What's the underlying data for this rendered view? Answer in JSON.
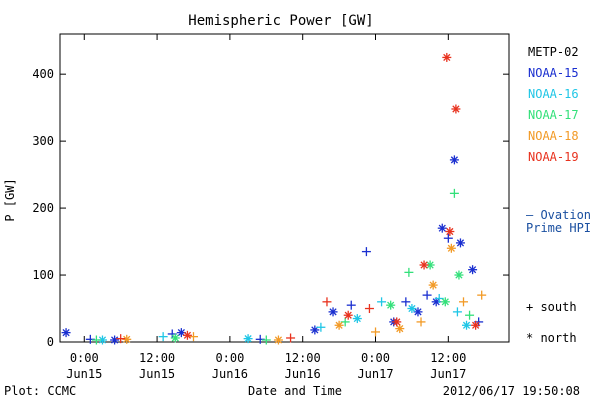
{
  "chart_data": {
    "type": "scatter",
    "title": "Hemispheric Power [GW]",
    "ylabel": "P [GW]",
    "xlabel": "Date and Time",
    "xlim": [
      "2012-06-14 20:00",
      "2012-06-17 22:00"
    ],
    "ylim": [
      0,
      460
    ],
    "yticks": [
      0,
      100,
      200,
      300,
      400
    ],
    "xticks": [
      {
        "t": "2012-06-15 00:00",
        "label1": "0:00",
        "label2": "Jun15"
      },
      {
        "t": "2012-06-15 12:00",
        "label1": "12:00",
        "label2": "Jun15"
      },
      {
        "t": "2012-06-16 00:00",
        "label1": "0:00",
        "label2": "Jun16"
      },
      {
        "t": "2012-06-16 12:00",
        "label1": "12:00",
        "label2": "Jun16"
      },
      {
        "t": "2012-06-17 00:00",
        "label1": "0:00",
        "label2": "Jun17"
      },
      {
        "t": "2012-06-17 12:00",
        "label1": "12:00",
        "label2": "Jun17"
      }
    ],
    "legend": "right",
    "series": [
      {
        "name": "METP-02",
        "color": "#000000",
        "points": []
      },
      {
        "name": "NOAA-15",
        "color": "#1a2fd0",
        "points": [
          {
            "t": "2012-06-14 21:00",
            "v": 14,
            "m": "north"
          },
          {
            "t": "2012-06-15 01:00",
            "v": 4,
            "m": "south"
          },
          {
            "t": "2012-06-15 05:00",
            "v": 3,
            "m": "north"
          },
          {
            "t": "2012-06-15 14:30",
            "v": 12,
            "m": "south"
          },
          {
            "t": "2012-06-15 16:00",
            "v": 14,
            "m": "north"
          },
          {
            "t": "2012-06-16 05:00",
            "v": 4,
            "m": "south"
          },
          {
            "t": "2012-06-16 14:00",
            "v": 18,
            "m": "north"
          },
          {
            "t": "2012-06-16 17:00",
            "v": 45,
            "m": "north"
          },
          {
            "t": "2012-06-16 20:00",
            "v": 55,
            "m": "south"
          },
          {
            "t": "2012-06-16 22:30",
            "v": 135,
            "m": "south"
          },
          {
            "t": "2012-06-17 03:00",
            "v": 30,
            "m": "north"
          },
          {
            "t": "2012-06-17 05:00",
            "v": 60,
            "m": "south"
          },
          {
            "t": "2012-06-17 07:00",
            "v": 45,
            "m": "north"
          },
          {
            "t": "2012-06-17 08:30",
            "v": 70,
            "m": "south"
          },
          {
            "t": "2012-06-17 10:00",
            "v": 60,
            "m": "north"
          },
          {
            "t": "2012-06-17 11:00",
            "v": 170,
            "m": "north"
          },
          {
            "t": "2012-06-17 12:00",
            "v": 155,
            "m": "south"
          },
          {
            "t": "2012-06-17 13:00",
            "v": 272,
            "m": "north"
          },
          {
            "t": "2012-06-17 14:00",
            "v": 148,
            "m": "north"
          },
          {
            "t": "2012-06-17 16:00",
            "v": 108,
            "m": "north"
          },
          {
            "t": "2012-06-17 17:00",
            "v": 30,
            "m": "south"
          }
        ]
      },
      {
        "name": "NOAA-16",
        "color": "#1fc6e6",
        "points": [
          {
            "t": "2012-06-15 03:00",
            "v": 3,
            "m": "north"
          },
          {
            "t": "2012-06-15 13:00",
            "v": 8,
            "m": "south"
          },
          {
            "t": "2012-06-16 03:00",
            "v": 5,
            "m": "north"
          },
          {
            "t": "2012-06-16 15:00",
            "v": 22,
            "m": "south"
          },
          {
            "t": "2012-06-16 21:00",
            "v": 35,
            "m": "north"
          },
          {
            "t": "2012-06-17 01:00",
            "v": 60,
            "m": "south"
          },
          {
            "t": "2012-06-17 06:00",
            "v": 50,
            "m": "north"
          },
          {
            "t": "2012-06-17 10:30",
            "v": 65,
            "m": "south"
          },
          {
            "t": "2012-06-17 13:30",
            "v": 45,
            "m": "south"
          },
          {
            "t": "2012-06-17 15:00",
            "v": 25,
            "m": "north"
          }
        ]
      },
      {
        "name": "NOAA-17",
        "color": "#33e07a",
        "points": [
          {
            "t": "2012-06-15 02:00",
            "v": 3,
            "m": "south"
          },
          {
            "t": "2012-06-15 15:00",
            "v": 6,
            "m": "north"
          },
          {
            "t": "2012-06-16 06:00",
            "v": 3,
            "m": "south"
          },
          {
            "t": "2012-06-16 19:00",
            "v": 30,
            "m": "south"
          },
          {
            "t": "2012-06-17 02:30",
            "v": 55,
            "m": "north"
          },
          {
            "t": "2012-06-17 05:30",
            "v": 104,
            "m": "south"
          },
          {
            "t": "2012-06-17 09:00",
            "v": 115,
            "m": "north"
          },
          {
            "t": "2012-06-17 11:30",
            "v": 60,
            "m": "north"
          },
          {
            "t": "2012-06-17 13:00",
            "v": 222,
            "m": "south"
          },
          {
            "t": "2012-06-17 13:45",
            "v": 100,
            "m": "north"
          },
          {
            "t": "2012-06-17 15:30",
            "v": 40,
            "m": "south"
          }
        ]
      },
      {
        "name": "NOAA-18",
        "color": "#f29a26",
        "points": [
          {
            "t": "2012-06-15 07:00",
            "v": 4,
            "m": "north"
          },
          {
            "t": "2012-06-15 18:00",
            "v": 8,
            "m": "south"
          },
          {
            "t": "2012-06-16 08:00",
            "v": 3,
            "m": "north"
          },
          {
            "t": "2012-06-16 18:00",
            "v": 25,
            "m": "north"
          },
          {
            "t": "2012-06-17 00:00",
            "v": 15,
            "m": "south"
          },
          {
            "t": "2012-06-17 04:00",
            "v": 20,
            "m": "north"
          },
          {
            "t": "2012-06-17 07:30",
            "v": 30,
            "m": "south"
          },
          {
            "t": "2012-06-17 09:30",
            "v": 85,
            "m": "north"
          },
          {
            "t": "2012-06-17 12:30",
            "v": 140,
            "m": "north"
          },
          {
            "t": "2012-06-17 14:30",
            "v": 60,
            "m": "south"
          },
          {
            "t": "2012-06-17 17:30",
            "v": 70,
            "m": "south"
          }
        ]
      },
      {
        "name": "NOAA-19",
        "color": "#e8321e",
        "points": [
          {
            "t": "2012-06-15 06:00",
            "v": 5,
            "m": "south"
          },
          {
            "t": "2012-06-15 17:00",
            "v": 10,
            "m": "north"
          },
          {
            "t": "2012-06-16 10:00",
            "v": 6,
            "m": "south"
          },
          {
            "t": "2012-06-16 16:00",
            "v": 60,
            "m": "south"
          },
          {
            "t": "2012-06-16 19:30",
            "v": 40,
            "m": "north"
          },
          {
            "t": "2012-06-16 23:00",
            "v": 50,
            "m": "south"
          },
          {
            "t": "2012-06-17 03:30",
            "v": 30,
            "m": "north"
          },
          {
            "t": "2012-06-17 08:00",
            "v": 115,
            "m": "north"
          },
          {
            "t": "2012-06-17 11:45",
            "v": 425,
            "m": "north"
          },
          {
            "t": "2012-06-17 12:15",
            "v": 165,
            "m": "north"
          },
          {
            "t": "2012-06-17 13:15",
            "v": 348,
            "m": "north"
          },
          {
            "t": "2012-06-17 16:30",
            "v": 25,
            "m": "north"
          }
        ]
      }
    ],
    "reference_line": {
      "label1": "— Ovation",
      "label2": "Prime HPI",
      "color": "#1a4fa0"
    },
    "marker_key": {
      "south": "+ south",
      "north": "* north"
    }
  },
  "footer": {
    "left": "Plot: CCMC",
    "center": "Date and Time",
    "right": "2012/06/17 19:50:08"
  }
}
